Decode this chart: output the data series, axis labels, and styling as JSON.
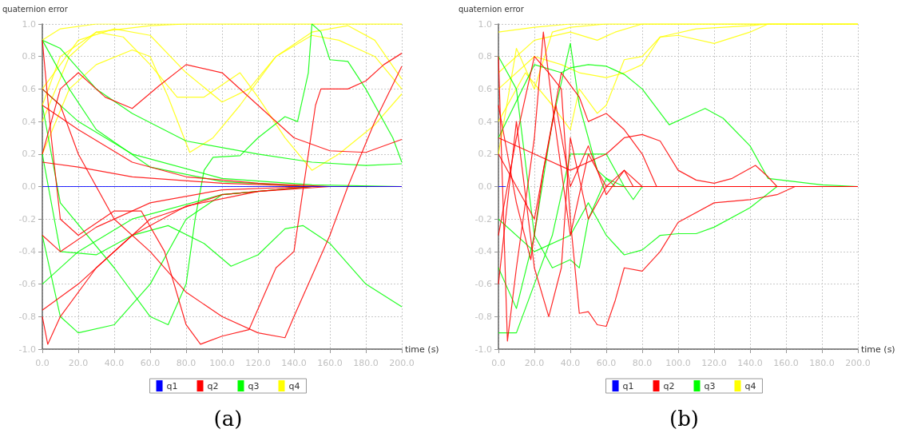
{
  "chart_data": [
    {
      "type": "line",
      "ylabel": "quaternion error",
      "xlabel": "time (s)",
      "annotations": [
        "(a)"
      ],
      "legend": "bottom",
      "grid": true,
      "marker": "none",
      "xlim": [
        0,
        200
      ],
      "xticks": [
        {
          "value": 0,
          "label": "0.0"
        },
        {
          "value": 20,
          "label": "20.0"
        },
        {
          "value": 40,
          "label": "40.0"
        },
        {
          "value": 60,
          "label": "60.0"
        },
        {
          "value": 80,
          "label": "80.0"
        },
        {
          "value": 100,
          "label": "100.0"
        },
        {
          "value": 120,
          "label": "120.0"
        },
        {
          "value": 140,
          "label": "140.0"
        },
        {
          "value": 160,
          "label": "160.0"
        },
        {
          "value": 180,
          "label": "180.0"
        },
        {
          "value": 200,
          "label": "200.0"
        }
      ],
      "ylim": [
        -1,
        1
      ],
      "yticks": [
        {
          "value": -1,
          "label": "-1.0"
        },
        {
          "value": -0.8,
          "label": "-0.8"
        },
        {
          "value": -0.6,
          "label": "-0.6"
        },
        {
          "value": -0.4,
          "label": "-0.4"
        },
        {
          "value": -0.2,
          "label": "-0.2"
        },
        {
          "value": 0,
          "label": "0.0"
        },
        {
          "value": 0.2,
          "label": "0.2"
        },
        {
          "value": 0.4,
          "label": "0.4"
        },
        {
          "value": 0.6,
          "label": "0.6"
        },
        {
          "value": 0.8,
          "label": "0.8"
        },
        {
          "value": 1,
          "label": "1.0"
        }
      ],
      "series": [
        {
          "name": "q1",
          "color": "#0000ff",
          "x": [
            0,
            45,
            200
          ],
          "values": [
            0,
            0,
            0
          ]
        },
        {
          "name": "q2",
          "color": "#ff0000",
          "x": [
            0,
            5,
            10,
            20,
            40,
            55,
            68,
            80,
            88,
            100,
            115,
            130,
            140,
            148,
            152,
            155,
            170,
            180,
            190,
            200
          ],
          "values": [
            0.9,
            0.3,
            -0.2,
            -0.3,
            -0.15,
            -0.15,
            -0.4,
            -0.85,
            -0.97,
            -0.92,
            -0.88,
            -0.5,
            -0.4,
            0.2,
            0.5,
            0.6,
            0.6,
            0.65,
            0.75,
            0.82
          ]
        },
        {
          "color": "#ff0000",
          "x": [
            0,
            10,
            20,
            35,
            50,
            65,
            80,
            100,
            120,
            140,
            160,
            180,
            200
          ],
          "values": [
            0.2,
            0.6,
            0.7,
            0.55,
            0.48,
            0.62,
            0.75,
            0.7,
            0.5,
            0.3,
            0.22,
            0.21,
            0.29
          ]
        },
        {
          "color": "#ff0000",
          "x": [
            0,
            10,
            20,
            40,
            60,
            80,
            100,
            120,
            135,
            140,
            150,
            160,
            170,
            185,
            200
          ],
          "values": [
            0.6,
            0.5,
            0.2,
            -0.2,
            -0.4,
            -0.65,
            -0.8,
            -0.9,
            -0.93,
            -0.8,
            -0.55,
            -0.3,
            0,
            0.4,
            0.74
          ]
        },
        {
          "color": "#ff0000",
          "x": [
            0,
            20,
            50,
            80,
            120,
            160,
            200
          ],
          "values": [
            0.5,
            0.35,
            0.15,
            0.06,
            0.02,
            0,
            0
          ]
        },
        {
          "color": "#ff0000",
          "x": [
            0,
            20,
            50,
            80,
            120,
            160,
            200
          ],
          "values": [
            -0.76,
            -0.6,
            -0.3,
            -0.12,
            -0.03,
            0,
            0
          ]
        },
        {
          "color": "#ff0000",
          "x": [
            0,
            20,
            50,
            100,
            150,
            200
          ],
          "values": [
            0.15,
            0.12,
            0.06,
            0.02,
            0,
            0
          ]
        },
        {
          "color": "#ff0000",
          "x": [
            0,
            10,
            30,
            60,
            100,
            150,
            200
          ],
          "values": [
            -0.3,
            -0.4,
            -0.25,
            -0.1,
            -0.02,
            0,
            0
          ]
        },
        {
          "color": "#ff0000",
          "x": [
            0,
            3,
            10,
            30,
            60,
            100,
            150,
            200
          ],
          "values": [
            -0.8,
            -0.97,
            -0.8,
            -0.5,
            -0.2,
            -0.05,
            0,
            0
          ]
        },
        {
          "name": "q3",
          "color": "#00ff00",
          "x": [
            0,
            10,
            40,
            60,
            70,
            80,
            85,
            90,
            95,
            110,
            120,
            135,
            142,
            148,
            150,
            155,
            160,
            170,
            180,
            195,
            200
          ],
          "values": [
            0.5,
            -0.1,
            -0.5,
            -0.8,
            -0.85,
            -0.6,
            -0.2,
            0.1,
            0.18,
            0.19,
            0.3,
            0.43,
            0.4,
            0.7,
            1.0,
            0.95,
            0.78,
            0.77,
            0.6,
            0.3,
            0.15
          ]
        },
        {
          "color": "#00ff00",
          "x": [
            0,
            10,
            30,
            50,
            70,
            90,
            105,
            120,
            135,
            145,
            160,
            180,
            200
          ],
          "values": [
            0.2,
            -0.4,
            -0.42,
            -0.3,
            -0.24,
            -0.35,
            -0.49,
            -0.42,
            -0.26,
            -0.24,
            -0.35,
            -0.6,
            -0.74
          ]
        },
        {
          "color": "#00ff00",
          "x": [
            0,
            10,
            30,
            50,
            80,
            120,
            150,
            180,
            200
          ],
          "values": [
            0.9,
            0.85,
            0.6,
            0.45,
            0.28,
            0.2,
            0.15,
            0.13,
            0.14
          ]
        },
        {
          "color": "#00ff00",
          "x": [
            0,
            20,
            50,
            100,
            150,
            200
          ],
          "values": [
            -0.6,
            -0.4,
            -0.2,
            -0.05,
            0,
            0
          ]
        },
        {
          "color": "#00ff00",
          "x": [
            0,
            20,
            50,
            100,
            150,
            200
          ],
          "values": [
            0.6,
            0.4,
            0.2,
            0.05,
            0.01,
            0
          ]
        },
        {
          "color": "#00ff00",
          "x": [
            0,
            10,
            20,
            40,
            60,
            80,
            100,
            150,
            200
          ],
          "values": [
            -0.3,
            -0.8,
            -0.9,
            -0.85,
            -0.6,
            -0.2,
            -0.05,
            0,
            0
          ]
        },
        {
          "color": "#00ff00",
          "x": [
            0,
            15,
            30,
            60,
            100,
            150,
            200
          ],
          "values": [
            0.9,
            0.6,
            0.35,
            0.12,
            0.03,
            0,
            0
          ]
        },
        {
          "name": "q4",
          "color": "#ffff00",
          "x": [
            0,
            10,
            30,
            200
          ],
          "values": [
            0.9,
            0.97,
            1.0,
            1.0
          ]
        },
        {
          "color": "#ffff00",
          "x": [
            0,
            10,
            30,
            60,
            80,
            200
          ],
          "values": [
            0.5,
            0.8,
            0.95,
            0.99,
            1.0,
            1.0
          ]
        },
        {
          "color": "#ffff00",
          "x": [
            0,
            15,
            30,
            50,
            60,
            70,
            82,
            95,
            110,
            130,
            150,
            165,
            185,
            200
          ],
          "values": [
            0.2,
            0.6,
            0.75,
            0.84,
            0.8,
            0.55,
            0.21,
            0.3,
            0.5,
            0.8,
            0.93,
            0.9,
            0.8,
            0.6
          ]
        },
        {
          "color": "#ffff00",
          "x": [
            0,
            20,
            40,
            60,
            80,
            100,
            115,
            130,
            150,
            170,
            185,
            200
          ],
          "values": [
            0.6,
            0.9,
            0.97,
            0.93,
            0.7,
            0.52,
            0.6,
            0.8,
            0.95,
            0.99,
            0.9,
            0.66
          ]
        },
        {
          "color": "#ffff00",
          "x": [
            0,
            15,
            30,
            45,
            60,
            75,
            90,
            110,
            120,
            135,
            150,
            165,
            185,
            200
          ],
          "values": [
            0.4,
            0.8,
            0.95,
            0.92,
            0.75,
            0.55,
            0.55,
            0.7,
            0.55,
            0.3,
            0.1,
            0.2,
            0.38,
            0.57
          ]
        }
      ]
    },
    {
      "type": "line",
      "ylabel": "quaternion error",
      "xlabel": "time (s)",
      "annotations": [
        "(b)"
      ],
      "legend": "bottom",
      "grid": true,
      "marker": "none",
      "xlim": [
        0,
        200
      ],
      "xticks": [
        {
          "value": 0,
          "label": "0.0"
        },
        {
          "value": 20,
          "label": "20.0"
        },
        {
          "value": 40,
          "label": "40.0"
        },
        {
          "value": 60,
          "label": "60.0"
        },
        {
          "value": 80,
          "label": "80.0"
        },
        {
          "value": 100,
          "label": "100.0"
        },
        {
          "value": 120,
          "label": "120.0"
        },
        {
          "value": 140,
          "label": "140.0"
        },
        {
          "value": 160,
          "label": "160.0"
        },
        {
          "value": 180,
          "label": "180.0"
        },
        {
          "value": 200,
          "label": "200.0"
        }
      ],
      "ylim": [
        -1,
        1
      ],
      "yticks": [
        {
          "value": -1,
          "label": "-1.0"
        },
        {
          "value": -0.8,
          "label": "-0.8"
        },
        {
          "value": -0.6,
          "label": "-0.6"
        },
        {
          "value": -0.4,
          "label": "-0.4"
        },
        {
          "value": -0.2,
          "label": "-0.2"
        },
        {
          "value": 0,
          "label": "0.0"
        },
        {
          "value": 0.2,
          "label": "0.2"
        },
        {
          "value": 0.4,
          "label": "0.4"
        },
        {
          "value": 0.6,
          "label": "0.6"
        },
        {
          "value": 0.8,
          "label": "0.8"
        },
        {
          "value": 1,
          "label": "1.0"
        }
      ],
      "series": [
        {
          "name": "q1",
          "color": "#0000ff",
          "x": [
            0,
            4
          ],
          "values": [
            0,
            0
          ]
        },
        {
          "name": "q2",
          "color": "#ff0000",
          "x": [
            0,
            10,
            20,
            28,
            35,
            40,
            45,
            50,
            55,
            60,
            65,
            70,
            80,
            90,
            100,
            120,
            140,
            155,
            165,
            200
          ],
          "values": [
            -0.3,
            0.3,
            0.8,
            0.7,
            0.6,
            -0.2,
            -0.78,
            -0.77,
            -0.85,
            -0.86,
            -0.7,
            -0.5,
            -0.52,
            -0.4,
            -0.22,
            -0.1,
            -0.08,
            -0.05,
            0,
            0
          ]
        },
        {
          "color": "#ff0000",
          "x": [
            0,
            20,
            35,
            45,
            50,
            60,
            70,
            80,
            88,
            200
          ],
          "values": [
            0.2,
            -0.2,
            0.7,
            0.55,
            0.4,
            0.45,
            0.35,
            0.2,
            0,
            0
          ]
        },
        {
          "color": "#ff0000",
          "x": [
            0,
            20,
            40,
            60,
            70,
            80,
            90,
            100,
            110,
            120,
            130,
            143,
            150,
            155,
            200
          ],
          "values": [
            0.3,
            0.2,
            0.1,
            0.2,
            0.3,
            0.32,
            0.28,
            0.1,
            0.04,
            0.02,
            0.05,
            0.13,
            0.06,
            0,
            0
          ]
        },
        {
          "color": "#ff0000",
          "x": [
            0,
            5,
            10,
            20,
            25,
            30,
            40,
            50,
            60,
            200
          ],
          "values": [
            0.8,
            -0.95,
            -0.5,
            0.3,
            0.95,
            0.5,
            -0.3,
            0.2,
            0,
            0
          ]
        },
        {
          "color": "#ff0000",
          "x": [
            0,
            10,
            20,
            28,
            35,
            40,
            50,
            60,
            70,
            75,
            200
          ],
          "values": [
            -0.6,
            0.4,
            -0.5,
            -0.8,
            -0.5,
            0.3,
            -0.2,
            0,
            0.1,
            0,
            0
          ]
        },
        {
          "color": "#ff0000",
          "x": [
            0,
            10,
            18,
            25,
            32,
            40,
            50,
            60,
            70,
            80,
            200
          ],
          "values": [
            0.5,
            -0.1,
            -0.45,
            0.1,
            0.5,
            0,
            0.25,
            -0.05,
            0.1,
            0,
            0
          ]
        },
        {
          "name": "q3",
          "color": "#00ff00",
          "x": [
            0,
            20,
            35,
            40,
            50,
            60,
            70,
            80,
            95,
            105,
            115,
            125,
            140,
            150,
            165,
            180,
            200
          ],
          "values": [
            0.3,
            0.75,
            0.7,
            0.73,
            0.75,
            0.74,
            0.69,
            0.6,
            0.38,
            0.43,
            0.48,
            0.42,
            0.25,
            0.05,
            0.03,
            0.01,
            0
          ]
        },
        {
          "color": "#00ff00",
          "x": [
            0,
            20,
            40,
            50,
            60,
            70,
            80,
            90,
            100,
            110,
            120,
            140,
            155,
            200
          ],
          "values": [
            -0.2,
            -0.4,
            -0.3,
            -0.1,
            -0.3,
            -0.42,
            -0.39,
            -0.3,
            -0.29,
            -0.29,
            -0.25,
            -0.13,
            0,
            0
          ]
        },
        {
          "color": "#00ff00",
          "x": [
            0,
            10,
            20,
            30,
            40,
            50,
            60,
            70,
            75,
            80,
            200
          ],
          "values": [
            -0.9,
            -0.9,
            -0.6,
            -0.3,
            0.2,
            0.2,
            0.2,
            0,
            -0.08,
            0,
            0
          ]
        },
        {
          "color": "#00ff00",
          "x": [
            0,
            10,
            20,
            30,
            40,
            45,
            50,
            60,
            70,
            200
          ],
          "values": [
            0.8,
            0.6,
            -0.3,
            -0.5,
            -0.45,
            -0.5,
            -0.2,
            0.05,
            0,
            0
          ]
        },
        {
          "color": "#00ff00",
          "x": [
            0,
            10,
            20,
            30,
            40,
            45,
            55,
            65,
            200
          ],
          "values": [
            -0.5,
            -0.75,
            -0.3,
            0.4,
            0.88,
            0.5,
            0.1,
            0,
            0
          ]
        },
        {
          "name": "q4",
          "color": "#ffff00",
          "x": [
            0,
            20,
            40,
            200
          ],
          "values": [
            0.95,
            0.98,
            1.0,
            1.0
          ]
        },
        {
          "color": "#ffff00",
          "x": [
            0,
            10,
            20,
            30,
            40,
            60,
            200
          ],
          "values": [
            0.2,
            0.85,
            0.6,
            0.95,
            0.98,
            1.0,
            1.0
          ]
        },
        {
          "color": "#ffff00",
          "x": [
            0,
            20,
            35,
            45,
            60,
            70,
            80,
            90,
            100,
            120,
            140,
            150,
            200
          ],
          "values": [
            0.6,
            0.8,
            0.75,
            0.7,
            0.67,
            0.7,
            0.75,
            0.92,
            0.93,
            0.88,
            0.95,
            1.0,
            1.0
          ]
        },
        {
          "color": "#ffff00",
          "x": [
            0,
            15,
            30,
            40,
            45,
            55,
            60,
            70,
            80,
            90,
            110,
            140,
            150,
            200
          ],
          "values": [
            0.4,
            0.7,
            0.5,
            0.35,
            0.6,
            0.45,
            0.5,
            0.78,
            0.8,
            0.92,
            0.97,
            0.99,
            1.0,
            1.0
          ]
        },
        {
          "color": "#ffff00",
          "x": [
            0,
            20,
            40,
            55,
            65,
            80,
            200
          ],
          "values": [
            0.7,
            0.9,
            0.95,
            0.9,
            0.95,
            1.0,
            1.0
          ]
        }
      ]
    }
  ]
}
